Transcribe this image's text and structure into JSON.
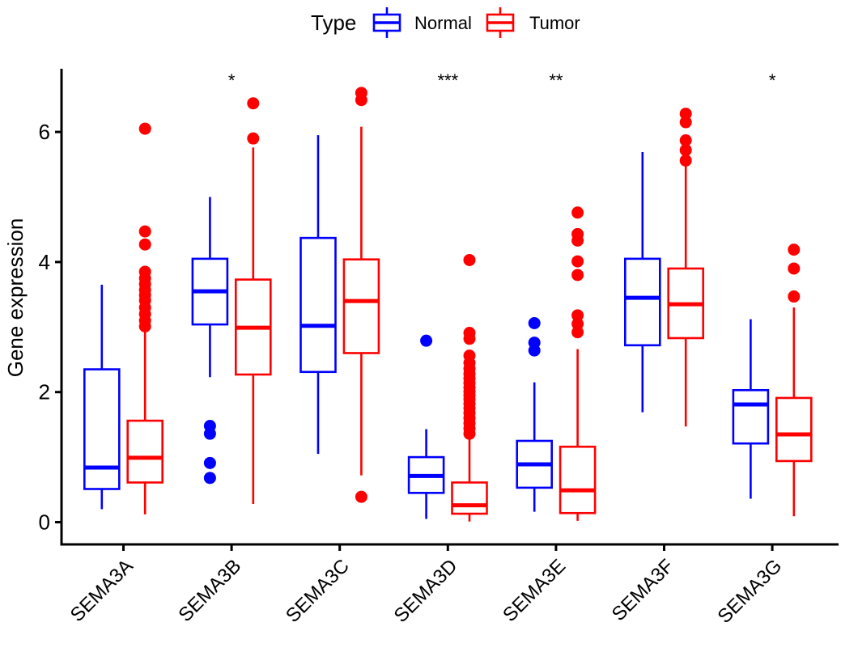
{
  "chart_data": {
    "type": "boxplot",
    "ylabel": "Gene expression",
    "xlabel": "",
    "ylim": [
      -0.35,
      6.95
    ],
    "yticks": [
      0,
      2,
      4,
      6
    ],
    "grid": false,
    "legend": {
      "position": "top",
      "title": "Type",
      "entries": [
        {
          "label": "Normal",
          "color": "#0000FF"
        },
        {
          "label": "Tumor",
          "color": "#FF0000"
        }
      ]
    },
    "categories": [
      "SEMA3A",
      "SEMA3B",
      "SEMA3C",
      "SEMA3D",
      "SEMA3E",
      "SEMA3F",
      "SEMA3G"
    ],
    "significance": [
      "",
      "*",
      "",
      "***",
      "**",
      "",
      "*"
    ],
    "series": [
      {
        "name": "Normal",
        "color": "#0000FF",
        "boxes": [
          {
            "min": 0.2,
            "q1": 0.51,
            "median": 0.84,
            "q3": 2.35,
            "max": 3.65,
            "outliers": []
          },
          {
            "min": 2.23,
            "q1": 3.04,
            "median": 3.55,
            "q3": 4.05,
            "max": 5.0,
            "outliers": [
              1.48,
              1.36,
              0.91,
              0.68
            ]
          },
          {
            "min": 1.05,
            "q1": 2.31,
            "median": 3.02,
            "q3": 4.37,
            "max": 5.95,
            "outliers": []
          },
          {
            "min": 0.05,
            "q1": 0.45,
            "median": 0.71,
            "q3": 1.0,
            "max": 1.43,
            "outliers": [
              2.79
            ]
          },
          {
            "min": 0.16,
            "q1": 0.53,
            "median": 0.89,
            "q3": 1.25,
            "max": 2.15,
            "outliers": [
              3.06,
              2.76,
              2.64
            ]
          },
          {
            "min": 1.69,
            "q1": 2.72,
            "median": 3.45,
            "q3": 4.05,
            "max": 5.69,
            "outliers": []
          },
          {
            "min": 0.36,
            "q1": 1.21,
            "median": 1.81,
            "q3": 2.03,
            "max": 3.12,
            "outliers": []
          }
        ]
      },
      {
        "name": "Tumor",
        "color": "#FF0000",
        "boxes": [
          {
            "min": 0.12,
            "q1": 0.61,
            "median": 0.99,
            "q3": 1.56,
            "max": 2.93,
            "outliers": [
              6.05,
              4.47,
              4.27,
              3.85,
              3.75,
              3.66,
              3.57,
              3.49,
              3.41,
              3.3,
              3.2,
              3.1,
              3.01
            ]
          },
          {
            "min": 0.28,
            "q1": 2.27,
            "median": 2.99,
            "q3": 3.73,
            "max": 5.76,
            "outliers": [
              6.44,
              5.9
            ]
          },
          {
            "min": 0.72,
            "q1": 2.6,
            "median": 3.4,
            "q3": 4.04,
            "max": 6.08,
            "outliers": [
              6.6,
              6.49,
              0.39
            ]
          },
          {
            "min": 0.01,
            "q1": 0.13,
            "median": 0.26,
            "q3": 0.61,
            "max": 1.3,
            "outliers": [
              4.03,
              2.91,
              2.82,
              2.56,
              2.45,
              2.36,
              2.28,
              2.21,
              2.14,
              2.07,
              2.01,
              1.95,
              1.89,
              1.82,
              1.75,
              1.68,
              1.6,
              1.52,
              1.44,
              1.36
            ]
          },
          {
            "min": 0.02,
            "q1": 0.14,
            "median": 0.49,
            "q3": 1.16,
            "max": 2.66,
            "outliers": [
              4.76,
              4.43,
              4.33,
              4.01,
              3.8,
              3.18,
              3.05,
              2.92
            ]
          },
          {
            "min": 1.47,
            "q1": 2.83,
            "median": 3.35,
            "q3": 3.9,
            "max": 5.48,
            "outliers": [
              6.28,
              6.15,
              5.87,
              5.72,
              5.56
            ]
          },
          {
            "min": 0.09,
            "q1": 0.94,
            "median": 1.35,
            "q3": 1.91,
            "max": 3.3,
            "outliers": [
              4.19,
              3.9,
              3.47
            ]
          }
        ]
      }
    ],
    "colors": {
      "axis": "#000000",
      "text": "#000000",
      "box_fill": "#FFFFFF"
    }
  }
}
